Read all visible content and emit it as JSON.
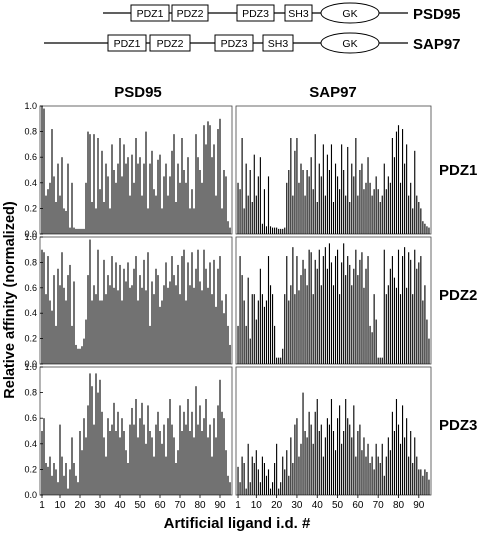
{
  "diagram": {
    "proteins": [
      {
        "name": "PSD95",
        "domains": [
          "PDZ1",
          "PDZ2",
          "PDZ3",
          "SH3",
          "GK"
        ]
      },
      {
        "name": "SAP97",
        "domains": [
          "PDZ1",
          "PDZ2",
          "PDZ3",
          "SH3",
          "GK"
        ]
      }
    ]
  },
  "chart_data": {
    "type": "bar",
    "columns": [
      "PSD95",
      "SAP97"
    ],
    "rows": [
      "PDZ1",
      "PDZ2",
      "PDZ3"
    ],
    "ylabel": "Relative affinity (normalized)",
    "xlabel": "Artificial ligand i.d. #",
    "ylim": [
      0,
      1.0
    ],
    "yticks": [
      "0.0",
      "0.2",
      "0.4",
      "0.6",
      "0.8",
      "1.0"
    ],
    "xlim": [
      0,
      96
    ],
    "xticks": [
      1,
      10,
      20,
      30,
      40,
      50,
      60,
      70,
      80,
      90
    ],
    "x": [
      1,
      2,
      3,
      4,
      5,
      6,
      7,
      8,
      9,
      10,
      11,
      12,
      13,
      14,
      15,
      16,
      17,
      18,
      19,
      20,
      21,
      22,
      23,
      24,
      25,
      26,
      27,
      28,
      29,
      30,
      31,
      32,
      33,
      34,
      35,
      36,
      37,
      38,
      39,
      40,
      41,
      42,
      43,
      44,
      45,
      46,
      47,
      48,
      49,
      50,
      51,
      52,
      53,
      54,
      55,
      56,
      57,
      58,
      59,
      60,
      61,
      62,
      63,
      64,
      65,
      66,
      67,
      68,
      69,
      70,
      71,
      72,
      73,
      74,
      75,
      76,
      77,
      78,
      79,
      80,
      81,
      82,
      83,
      84,
      85,
      86,
      87,
      88,
      89,
      90,
      91,
      92,
      93,
      94,
      95
    ],
    "panels": [
      {
        "column": "PSD95",
        "row": "PDZ1",
        "values": [
          1.0,
          0.98,
          0.3,
          0.35,
          0.4,
          0.82,
          0.45,
          0.25,
          0.55,
          0.3,
          0.6,
          0.2,
          0.18,
          0.55,
          0.05,
          0.4,
          0.05,
          0.04,
          0.04,
          0.04,
          0.04,
          0.04,
          0.4,
          0.8,
          0.78,
          0.25,
          0.78,
          0.2,
          0.75,
          0.35,
          0.65,
          0.25,
          0.55,
          0.45,
          0.2,
          0.7,
          0.5,
          0.4,
          0.55,
          0.75,
          0.45,
          0.7,
          0.55,
          0.6,
          0.3,
          0.62,
          0.4,
          0.75,
          0.55,
          0.6,
          0.3,
          0.55,
          0.8,
          0.2,
          0.55,
          0.65,
          0.35,
          0.3,
          0.58,
          0.62,
          0.2,
          0.45,
          0.55,
          0.3,
          0.45,
          0.65,
          0.78,
          0.25,
          0.55,
          0.4,
          0.75,
          0.5,
          0.4,
          0.6,
          0.2,
          0.35,
          0.2,
          0.78,
          0.6,
          0.5,
          0.4,
          0.85,
          0.7,
          0.88,
          0.85,
          0.6,
          0.7,
          0.3,
          0.82,
          0.9,
          0.2,
          0.5,
          0.45,
          0.1,
          0.05
        ]
      },
      {
        "column": "SAP97",
        "row": "PDZ1",
        "values": [
          0.4,
          0.35,
          0.75,
          0.2,
          0.55,
          0.3,
          0.5,
          0.25,
          0.62,
          0.3,
          0.45,
          0.6,
          0.08,
          0.35,
          0.06,
          0.45,
          0.06,
          0.05,
          0.05,
          0.05,
          0.04,
          0.04,
          0.04,
          0.05,
          0.4,
          0.5,
          0.75,
          0.3,
          0.65,
          0.75,
          0.4,
          0.55,
          0.5,
          0.3,
          0.5,
          0.45,
          0.6,
          0.35,
          0.78,
          0.25,
          0.55,
          0.45,
          0.7,
          0.3,
          0.62,
          0.5,
          0.7,
          0.25,
          0.55,
          0.45,
          0.35,
          0.7,
          0.5,
          0.3,
          0.68,
          0.25,
          0.55,
          0.45,
          0.75,
          0.3,
          0.5,
          0.55,
          0.35,
          0.4,
          0.6,
          0.4,
          0.3,
          0.35,
          0.45,
          0.35,
          0.25,
          0.3,
          0.55,
          0.35,
          0.45,
          0.4,
          0.75,
          0.6,
          0.8,
          0.85,
          0.4,
          0.82,
          0.55,
          0.7,
          0.3,
          0.4,
          0.2,
          0.65,
          0.3,
          0.25,
          0.2,
          0.1,
          0.08,
          0.06,
          0.05
        ]
      },
      {
        "column": "PSD95",
        "row": "PDZ2",
        "values": [
          0.9,
          0.88,
          0.55,
          0.85,
          0.5,
          0.42,
          0.7,
          0.3,
          0.75,
          0.62,
          0.88,
          0.6,
          0.5,
          0.7,
          0.78,
          0.3,
          0.65,
          0.15,
          0.12,
          0.12,
          0.14,
          0.2,
          0.35,
          0.7,
          0.98,
          0.5,
          0.62,
          0.55,
          0.9,
          0.5,
          0.5,
          0.82,
          0.55,
          0.7,
          0.62,
          0.85,
          0.6,
          0.8,
          0.58,
          0.78,
          0.5,
          0.75,
          0.65,
          0.8,
          0.6,
          0.62,
          0.75,
          0.85,
          0.5,
          0.7,
          0.6,
          0.82,
          0.58,
          0.88,
          0.3,
          0.65,
          0.55,
          0.75,
          0.7,
          0.45,
          0.5,
          0.62,
          0.8,
          0.6,
          0.65,
          0.85,
          0.7,
          0.62,
          0.78,
          0.55,
          0.85,
          0.9,
          0.5,
          0.8,
          0.62,
          0.88,
          0.6,
          0.75,
          0.9,
          0.65,
          0.58,
          0.9,
          0.75,
          0.6,
          0.8,
          0.55,
          0.82,
          0.45,
          0.75,
          0.85,
          0.5,
          0.4,
          0.55,
          0.3,
          0.15
        ]
      },
      {
        "column": "SAP97",
        "row": "PDZ2",
        "values": [
          0.3,
          0.85,
          0.7,
          0.5,
          0.3,
          0.68,
          0.2,
          0.55,
          0.55,
          0.35,
          0.5,
          0.75,
          0.55,
          0.45,
          0.5,
          0.85,
          0.62,
          0.55,
          0.3,
          0.05,
          0.05,
          0.05,
          0.12,
          0.55,
          0.85,
          0.5,
          0.62,
          0.92,
          0.55,
          0.85,
          0.58,
          0.7,
          0.82,
          0.75,
          0.62,
          0.9,
          0.88,
          0.55,
          0.82,
          0.75,
          0.9,
          0.62,
          0.85,
          0.92,
          0.75,
          0.95,
          0.8,
          0.62,
          0.85,
          0.9,
          0.55,
          0.8,
          0.95,
          0.7,
          0.85,
          0.78,
          0.62,
          0.75,
          0.9,
          0.7,
          0.82,
          0.88,
          0.6,
          0.75,
          0.85,
          0.3,
          0.25,
          0.55,
          0.35,
          0.05,
          0.05,
          0.05,
          0.9,
          0.55,
          0.62,
          0.75,
          0.85,
          0.68,
          0.6,
          0.9,
          0.55,
          0.85,
          0.92,
          0.6,
          0.88,
          0.82,
          0.55,
          0.9,
          0.75,
          0.8,
          0.85,
          0.5,
          0.62,
          0.35,
          0.2
        ]
      },
      {
        "column": "SAP97",
        "row": "PDZ3",
        "values": [
          0.22,
          0.1,
          0.3,
          0.25,
          0.05,
          0.4,
          0.1,
          0.3,
          0.25,
          0.35,
          0.2,
          0.1,
          0.3,
          0.25,
          0.15,
          0.2,
          0.05,
          0.1,
          0.25,
          0.4,
          0.05,
          0.1,
          0.3,
          0.2,
          0.35,
          0.15,
          0.45,
          0.25,
          0.55,
          0.6,
          0.3,
          0.4,
          0.8,
          0.5,
          0.45,
          0.65,
          0.55,
          0.4,
          0.65,
          0.75,
          0.5,
          0.55,
          0.3,
          0.45,
          0.6,
          0.55,
          0.75,
          0.5,
          0.35,
          0.6,
          0.7,
          0.4,
          0.5,
          0.75,
          0.6,
          0.55,
          0.45,
          0.7,
          0.3,
          0.5,
          0.55,
          0.35,
          0.45,
          0.3,
          0.4,
          0.25,
          0.3,
          0.2,
          0.4,
          0.3,
          0.25,
          0.4,
          0.15,
          0.3,
          0.45,
          0.35,
          0.65,
          0.5,
          0.75,
          0.55,
          0.4,
          0.7,
          0.45,
          0.6,
          0.3,
          0.5,
          0.25,
          0.45,
          0.3,
          0.2,
          0.2,
          0.15,
          0.2,
          0.18,
          0.12
        ]
      },
      {
        "column": "PSD95",
        "row": "PDZ3",
        "values": [
          0.5,
          0.6,
          0.25,
          0.22,
          0.3,
          0.15,
          0.25,
          0.2,
          0.1,
          0.55,
          0.3,
          0.15,
          0.25,
          0.05,
          0.2,
          0.45,
          0.25,
          0.15,
          0.1,
          0.5,
          0.35,
          0.6,
          0.45,
          0.7,
          0.95,
          0.85,
          0.55,
          0.95,
          0.8,
          0.9,
          0.65,
          0.45,
          0.3,
          0.6,
          0.5,
          0.55,
          0.72,
          0.5,
          0.65,
          0.45,
          0.6,
          0.5,
          0.35,
          0.25,
          0.55,
          0.68,
          0.55,
          0.75,
          0.45,
          0.6,
          0.72,
          0.55,
          0.4,
          0.7,
          0.5,
          0.45,
          0.3,
          0.55,
          0.65,
          0.5,
          0.4,
          0.55,
          0.3,
          0.6,
          0.75,
          0.55,
          0.45,
          0.25,
          0.35,
          0.7,
          0.5,
          0.65,
          0.55,
          0.75,
          0.5,
          0.65,
          0.45,
          0.85,
          0.55,
          0.7,
          0.5,
          0.6,
          0.75,
          0.45,
          0.55,
          0.3,
          0.6,
          0.45,
          0.7,
          0.9,
          0.65,
          0.6,
          0.35,
          0.15,
          0.1
        ]
      }
    ]
  }
}
